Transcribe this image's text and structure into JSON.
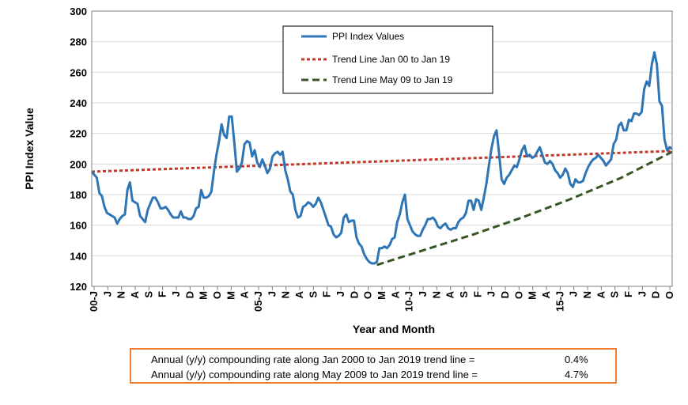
{
  "chart_data": {
    "type": "line",
    "xlabel": "Year and Month",
    "ylabel": "PPI Index Value",
    "ylim": [
      120,
      300
    ],
    "yticks": [
      120,
      140,
      160,
      180,
      200,
      220,
      240,
      260,
      280,
      300
    ],
    "xtick_labels": [
      "00-J",
      "J",
      "N",
      "A",
      "S",
      "F",
      "J",
      "D",
      "M",
      "O",
      "M",
      "A",
      "05-J",
      "J",
      "N",
      "A",
      "S",
      "F",
      "J",
      "D",
      "O",
      "M",
      "A",
      "10-J",
      "J",
      "N",
      "A",
      "S",
      "F",
      "J",
      "D",
      "O",
      "M",
      "A",
      "15-J",
      "J",
      "N",
      "A",
      "S",
      "F",
      "J",
      "D",
      "O"
    ],
    "grid": "horizontal",
    "legend_position": "top-center",
    "series": [
      {
        "name": "PPI Index Values",
        "color": "#2e75b6",
        "style": "solid",
        "points": [
          [
            0,
            195
          ],
          [
            1,
            193
          ],
          [
            2,
            191
          ],
          [
            3,
            181
          ],
          [
            4,
            179
          ],
          [
            5,
            172
          ],
          [
            6,
            168
          ],
          [
            7,
            167
          ],
          [
            8,
            166
          ],
          [
            9,
            165
          ],
          [
            10,
            161
          ],
          [
            11,
            164
          ],
          [
            12,
            166
          ],
          [
            13,
            167
          ],
          [
            14,
            183
          ],
          [
            15,
            188
          ],
          [
            16,
            176
          ],
          [
            17,
            175
          ],
          [
            18,
            174
          ],
          [
            19,
            166
          ],
          [
            20,
            164
          ],
          [
            21,
            162
          ],
          [
            22,
            170
          ],
          [
            23,
            174
          ],
          [
            24,
            178
          ],
          [
            25,
            178
          ],
          [
            26,
            175
          ],
          [
            27,
            171
          ],
          [
            28,
            171
          ],
          [
            29,
            172
          ],
          [
            30,
            170
          ],
          [
            31,
            167
          ],
          [
            32,
            165
          ],
          [
            33,
            165
          ],
          [
            34,
            165
          ],
          [
            35,
            169
          ],
          [
            36,
            165
          ],
          [
            37,
            165
          ],
          [
            38,
            164
          ],
          [
            39,
            164
          ],
          [
            40,
            166
          ],
          [
            41,
            171
          ],
          [
            42,
            172
          ],
          [
            43,
            183
          ],
          [
            44,
            178
          ],
          [
            45,
            178
          ],
          [
            46,
            179
          ],
          [
            47,
            182
          ],
          [
            48,
            195
          ],
          [
            49,
            206
          ],
          [
            50,
            215
          ],
          [
            51,
            226
          ],
          [
            52,
            219
          ],
          [
            53,
            217
          ],
          [
            54,
            231
          ],
          [
            55,
            231
          ],
          [
            56,
            214
          ],
          [
            57,
            195
          ],
          [
            58,
            197
          ],
          [
            59,
            201
          ],
          [
            60,
            213
          ],
          [
            61,
            215
          ],
          [
            62,
            214
          ],
          [
            63,
            205
          ],
          [
            64,
            209
          ],
          [
            65,
            201
          ],
          [
            66,
            198
          ],
          [
            67,
            203
          ],
          [
            68,
            199
          ],
          [
            69,
            194
          ],
          [
            70,
            197
          ],
          [
            71,
            205
          ],
          [
            72,
            207
          ],
          [
            73,
            208
          ],
          [
            74,
            206
          ],
          [
            75,
            208
          ],
          [
            76,
            196
          ],
          [
            77,
            190
          ],
          [
            78,
            182
          ],
          [
            79,
            180
          ],
          [
            80,
            170
          ],
          [
            81,
            165
          ],
          [
            82,
            166
          ],
          [
            83,
            172
          ],
          [
            84,
            173
          ],
          [
            85,
            175
          ],
          [
            86,
            174
          ],
          [
            87,
            172
          ],
          [
            88,
            174
          ],
          [
            89,
            178
          ],
          [
            90,
            175
          ],
          [
            91,
            170
          ],
          [
            92,
            165
          ],
          [
            93,
            160
          ],
          [
            94,
            159
          ],
          [
            95,
            154
          ],
          [
            96,
            152
          ],
          [
            97,
            153
          ],
          [
            98,
            155
          ],
          [
            99,
            165
          ],
          [
            100,
            167
          ],
          [
            101,
            162
          ],
          [
            102,
            163
          ],
          [
            103,
            163
          ],
          [
            104,
            152
          ],
          [
            105,
            148
          ],
          [
            106,
            146
          ],
          [
            107,
            141
          ],
          [
            108,
            138
          ],
          [
            109,
            136
          ],
          [
            110,
            135
          ],
          [
            111,
            135
          ],
          [
            112,
            136
          ],
          [
            113,
            145
          ],
          [
            114,
            145
          ],
          [
            115,
            146
          ],
          [
            116,
            145
          ],
          [
            117,
            147
          ],
          [
            118,
            151
          ],
          [
            119,
            152
          ],
          [
            120,
            162
          ],
          [
            121,
            167
          ],
          [
            122,
            175
          ],
          [
            123,
            180
          ],
          [
            124,
            164
          ],
          [
            125,
            160
          ],
          [
            126,
            156
          ],
          [
            127,
            154
          ],
          [
            128,
            153
          ],
          [
            129,
            153
          ],
          [
            130,
            157
          ],
          [
            131,
            160
          ],
          [
            132,
            164
          ],
          [
            133,
            164
          ],
          [
            134,
            165
          ],
          [
            135,
            163
          ],
          [
            136,
            159
          ],
          [
            137,
            158
          ],
          [
            138,
            160
          ],
          [
            139,
            161
          ],
          [
            140,
            158
          ],
          [
            141,
            157
          ],
          [
            142,
            158
          ],
          [
            143,
            158
          ],
          [
            144,
            162
          ],
          [
            145,
            164
          ],
          [
            146,
            165
          ],
          [
            147,
            168
          ],
          [
            148,
            176
          ],
          [
            149,
            176
          ],
          [
            150,
            170
          ],
          [
            151,
            177
          ],
          [
            152,
            176
          ],
          [
            153,
            170
          ],
          [
            154,
            178
          ],
          [
            155,
            187
          ],
          [
            156,
            199
          ],
          [
            157,
            210
          ],
          [
            158,
            218
          ],
          [
            159,
            222
          ],
          [
            160,
            207
          ],
          [
            161,
            190
          ],
          [
            162,
            187
          ],
          [
            163,
            191
          ],
          [
            164,
            193
          ],
          [
            165,
            196
          ],
          [
            166,
            199
          ],
          [
            167,
            198
          ],
          [
            168,
            203
          ],
          [
            169,
            209
          ],
          [
            170,
            212
          ],
          [
            171,
            205
          ],
          [
            172,
            206
          ],
          [
            173,
            204
          ],
          [
            174,
            205
          ],
          [
            175,
            208
          ],
          [
            176,
            211
          ],
          [
            177,
            206
          ],
          [
            178,
            201
          ],
          [
            179,
            200
          ],
          [
            180,
            202
          ],
          [
            181,
            200
          ],
          [
            182,
            196
          ],
          [
            183,
            194
          ],
          [
            184,
            191
          ],
          [
            185,
            193
          ],
          [
            186,
            197
          ],
          [
            187,
            194
          ],
          [
            188,
            187
          ],
          [
            189,
            185
          ],
          [
            190,
            190
          ],
          [
            191,
            188
          ],
          [
            192,
            188
          ],
          [
            193,
            189
          ],
          [
            194,
            194
          ],
          [
            195,
            198
          ],
          [
            196,
            201
          ],
          [
            197,
            203
          ],
          [
            198,
            204
          ],
          [
            199,
            206
          ],
          [
            200,
            204
          ],
          [
            201,
            202
          ],
          [
            202,
            199
          ],
          [
            203,
            201
          ],
          [
            204,
            203
          ],
          [
            205,
            213
          ],
          [
            206,
            216
          ],
          [
            207,
            225
          ],
          [
            208,
            227
          ],
          [
            209,
            222
          ],
          [
            210,
            222
          ],
          [
            211,
            229
          ],
          [
            212,
            228
          ],
          [
            213,
            233
          ],
          [
            214,
            233
          ],
          [
            215,
            232
          ],
          [
            216,
            234
          ],
          [
            217,
            249
          ],
          [
            218,
            254
          ],
          [
            219,
            251
          ],
          [
            220,
            265
          ],
          [
            221,
            273
          ],
          [
            222,
            265
          ],
          [
            223,
            241
          ],
          [
            224,
            238
          ],
          [
            225,
            216
          ],
          [
            226,
            209
          ],
          [
            227,
            211
          ],
          [
            228,
            210
          ]
        ]
      },
      {
        "name": "Trend Line Jan 00 to Jan 19",
        "color": "#c0392b",
        "style": "dotted",
        "points": [
          [
            0,
            195
          ],
          [
            228,
            208.5
          ]
        ]
      },
      {
        "name": "Trend Line May 09 to Jan 19",
        "color": "#375623",
        "style": "dashed",
        "points": [
          [
            112,
            134
          ],
          [
            131,
            144
          ],
          [
            150,
            154
          ],
          [
            169,
            165
          ],
          [
            188,
            177
          ],
          [
            208,
            191
          ],
          [
            228,
            208
          ]
        ]
      }
    ]
  },
  "rate_box": {
    "rows": [
      {
        "label": "Annual (y/y) compounding rate along Jan 2000 to Jan 2019 trend line =",
        "value": "0.4%"
      },
      {
        "label": "Annual (y/y) compounding rate along May 2009 to Jan 2019 trend line =",
        "value": "4.7%"
      }
    ]
  },
  "colors": {
    "border": "#ed7d31",
    "gridline": "#d9d9d9"
  }
}
